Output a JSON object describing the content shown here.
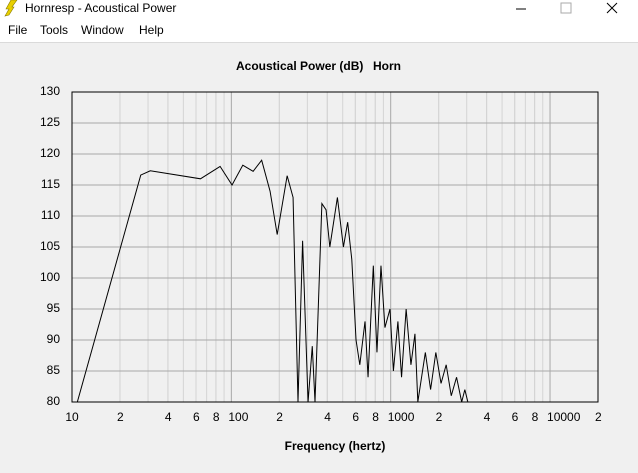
{
  "window": {
    "title": "Hornresp - Acoustical Power",
    "menu": [
      "File",
      "Tools",
      "Window",
      "Help"
    ]
  },
  "chart_data": {
    "type": "line",
    "title": "Acoustical Power (dB)",
    "subtitle": "Horn",
    "x_label": "Frequency (hertz)",
    "log_x": true,
    "grid": true,
    "xlim": [
      10,
      20000
    ],
    "xticks": [
      {
        "value": 10,
        "label": "10"
      },
      {
        "value": 20,
        "label": "2"
      },
      {
        "value": 40,
        "label": "4"
      },
      {
        "value": 60,
        "label": "6"
      },
      {
        "value": 80,
        "label": "8"
      },
      100,
      {
        "value": 200,
        "label": "2"
      },
      {
        "value": 400,
        "label": "4"
      },
      {
        "value": 600,
        "label": "6"
      },
      {
        "value": 800,
        "label": "8"
      },
      1000,
      {
        "value": 2000,
        "label": "2"
      },
      {
        "value": 4000,
        "label": "4"
      },
      {
        "value": 6000,
        "label": "6"
      },
      {
        "value": 8000,
        "label": "8"
      },
      10000,
      {
        "value": 20000,
        "label": "2"
      }
    ],
    "ylim": [
      80,
      130
    ],
    "yticks": [
      80,
      85,
      90,
      95,
      100,
      105,
      110,
      115,
      120,
      125,
      130
    ],
    "series": [
      {
        "color": "#000000",
        "x": [
          10.8,
          27,
          31,
          64,
          85,
          101,
          118,
          137,
          155,
          175,
          194,
          224,
          244,
          262,
          280,
          303,
          322,
          335,
          370,
          393,
          415,
          463,
          505,
          537,
          570,
          606,
          640,
          690,
          721,
          778,
          820,
          869,
          920,
          990,
          1040,
          1110,
          1170,
          1250,
          1340,
          1420,
          1480,
          1650,
          1780,
          1920,
          2070,
          2230,
          2400,
          2590,
          2790,
          2920,
          3050
        ],
        "values": [
          80,
          116.6,
          117.3,
          116,
          118,
          115,
          118.2,
          117.2,
          119,
          114,
          107,
          116.5,
          113,
          80,
          106,
          80,
          89,
          80,
          112,
          111,
          105,
          113,
          105,
          109,
          103,
          90,
          86,
          93,
          84,
          102,
          88,
          102,
          92,
          95,
          85,
          93,
          84,
          95,
          86,
          91,
          80,
          88,
          82,
          88,
          83,
          86,
          81,
          84,
          80,
          82,
          80
        ]
      }
    ]
  }
}
